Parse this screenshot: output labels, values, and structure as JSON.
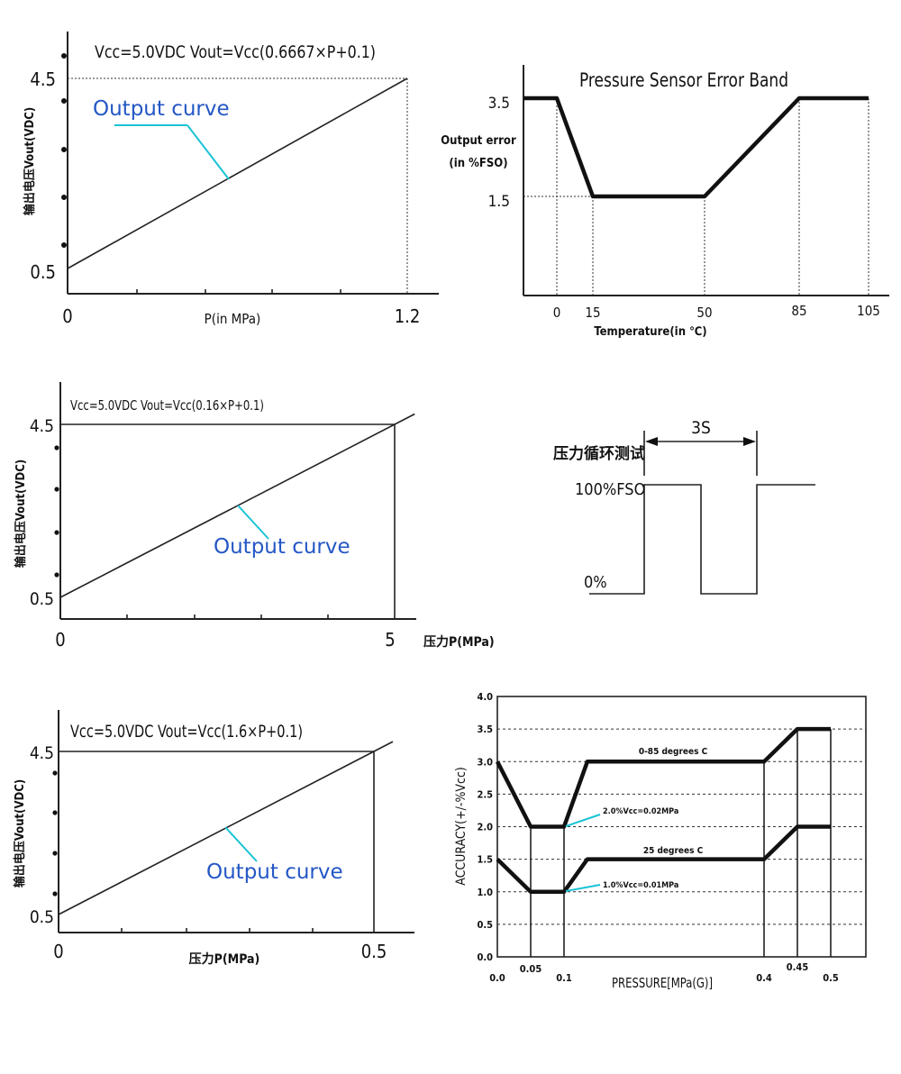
{
  "chart_data": [
    {
      "type": "line",
      "formula": "Vcc=5.0VDC   Vout=Vcc(0.6667×P+0.1)",
      "ylabel": "输出电压Vout(VDC)",
      "xlabel": "P(in MPa)",
      "x_ticks": [
        "0",
        "1.2"
      ],
      "y_ticks": [
        "0.5",
        "4.5"
      ],
      "annotation": "Output curve",
      "series": [
        {
          "x": [
            0,
            1.2
          ],
          "y": [
            0.5,
            4.5
          ]
        }
      ]
    },
    {
      "type": "line",
      "title": "Pressure Sensor Error Band",
      "ylabel": [
        "Output error",
        "(in %FSO)"
      ],
      "xlabel": "Temperature(in ℃)",
      "x_ticks": [
        "0",
        "15",
        "50",
        "85",
        "105"
      ],
      "y_ticks": [
        "3.5",
        "1.5"
      ],
      "series": [
        {
          "x": [
            -10,
            0,
            15,
            50,
            85,
            105
          ],
          "y": [
            3.5,
            3.5,
            1.5,
            1.5,
            3.5,
            3.5
          ]
        }
      ]
    },
    {
      "type": "line",
      "formula": "Vcc=5.0VDC   Vout=Vcc(0.16×P+0.1)",
      "ylabel": "输出电压Vout(VDC)",
      "xlabel": "压力P(MPa)",
      "x_ticks": [
        "0",
        "5"
      ],
      "y_ticks": [
        "0.5",
        "4.5"
      ],
      "annotation": "Output curve",
      "series": [
        {
          "x": [
            0,
            5.3
          ],
          "y": [
            0.5,
            4.74
          ]
        }
      ]
    },
    {
      "type": "line",
      "title": "压力循环测试",
      "period_label": "3S",
      "y_ticks": [
        "100%FSO",
        "0%"
      ],
      "series": [
        {
          "t": [
            0,
            0,
            1,
            1,
            2,
            2,
            3
          ],
          "level": [
            0,
            100,
            100,
            0,
            0,
            100,
            100
          ]
        }
      ]
    },
    {
      "type": "line",
      "formula": "Vcc=5.0VDC   Vout=Vcc(1.6×P+0.1)",
      "ylabel": "输出电压Vout(VDC)",
      "xlabel": "压力P(MPa)",
      "x_ticks": [
        "0",
        "0.5"
      ],
      "y_ticks": [
        "0.5",
        "4.5"
      ],
      "annotation": "Output curve",
      "series": [
        {
          "x": [
            0,
            0.53
          ],
          "y": [
            0.5,
            4.74
          ]
        }
      ]
    },
    {
      "type": "line",
      "xlabel": "PRESSURE[MPa(G)]",
      "ylabel": "ACCURACY(+/-%Vcc)",
      "x_ticks": [
        "0.0",
        "0.05",
        "0.1",
        "0.4",
        "0.45",
        "0.5"
      ],
      "y_ticks": [
        "0.0",
        "0.5",
        "1.0",
        "1.5",
        "2.0",
        "2.5",
        "3.0",
        "3.5",
        "4.0"
      ],
      "ylim": [
        0,
        4.0
      ],
      "xlim": [
        0,
        0.55
      ],
      "series": [
        {
          "name": "0-85 degrees C",
          "x": [
            0,
            0.05,
            0.1,
            0.135,
            0.4,
            0.45,
            0.5
          ],
          "y": [
            3.0,
            2.0,
            2.0,
            3.0,
            3.0,
            3.5,
            3.5
          ]
        },
        {
          "name": "25 degrees C",
          "x": [
            0,
            0.05,
            0.1,
            0.135,
            0.4,
            0.45,
            0.5
          ],
          "y": [
            1.5,
            1.0,
            1.0,
            1.5,
            1.5,
            2.0,
            2.0
          ]
        }
      ],
      "annotations": [
        "2.0%Vcc=0.02MPa",
        "1.0%Vcc=0.01MPa"
      ]
    }
  ]
}
